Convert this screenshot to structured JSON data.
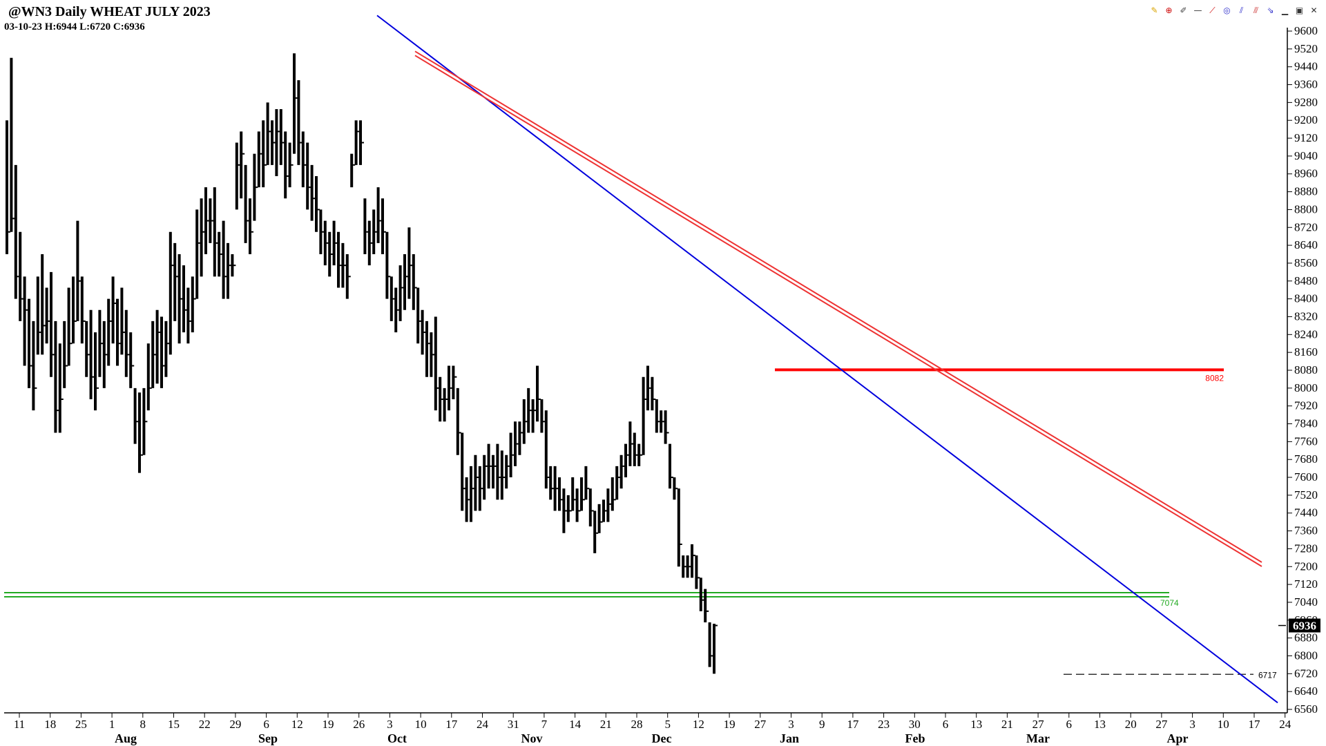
{
  "header": {
    "title": "@WN3 Daily WHEAT JULY 2023",
    "ohlc": "03-10-23  H:6944  L:6720  C:6936"
  },
  "toolbar": {
    "icons": [
      "pencil-icon",
      "crosshair-icon",
      "brush-icon",
      "line-icon",
      "trendline-icon",
      "circle-icon",
      "fan-icon",
      "channel-icon",
      "arrow-icon",
      "minimize-icon",
      "restore-icon",
      "close-icon"
    ]
  },
  "colors": {
    "bars": "#000000",
    "resistance": "#ff0000",
    "support": "#22aa22",
    "trend_blue": "#0000dd",
    "trend_red": "#ee3333"
  },
  "chart_data": {
    "type": "bar",
    "title": "@WN3 Daily WHEAT JULY 2023",
    "ylim": [
      6560,
      9600
    ],
    "y_ticks": [
      6560,
      6640,
      6720,
      6800,
      6880,
      6960,
      7040,
      7120,
      7200,
      7280,
      7360,
      7440,
      7520,
      7600,
      7680,
      7760,
      7840,
      7920,
      8000,
      8080,
      8160,
      8240,
      8320,
      8400,
      8480,
      8560,
      8640,
      8720,
      8800,
      8880,
      8960,
      9040,
      9120,
      9200,
      9280,
      9360,
      9440,
      9520,
      9600
    ],
    "x_day_labels": [
      "11",
      "18",
      "25",
      "1",
      "8",
      "15",
      "22",
      "29",
      "6",
      "12",
      "19",
      "26",
      "3",
      "10",
      "17",
      "24",
      "31",
      "7",
      "14",
      "21",
      "28",
      "5",
      "12",
      "19",
      "27",
      "3",
      "9",
      "17",
      "23",
      "30",
      "6",
      "13",
      "21",
      "27",
      "6",
      "13",
      "20",
      "27",
      "3",
      "10",
      "17",
      "24"
    ],
    "x_month_labels": [
      "Aug",
      "Sep",
      "Oct",
      "Nov",
      "Dec",
      "Jan",
      "Feb",
      "Mar",
      "Apr"
    ],
    "last_price": "6936",
    "levels": [
      {
        "value": 8082,
        "label": "8082"
      },
      {
        "value": 7074,
        "label": "7074"
      },
      {
        "value": 6717,
        "label": "6717"
      }
    ],
    "trendlines": [
      {
        "name": "",
        "from": [
          9670,
          1
        ],
        "to": [
          6590,
          241
        ]
      },
      {
        "name": "",
        "from": [
          9500,
          14
        ],
        "to": [
          7210,
          240
        ]
      }
    ],
    "bars": [
      {
        "h": 9200,
        "l": 8600,
        "c": 8700
      },
      {
        "h": 9480,
        "l": 8700,
        "c": 8760
      },
      {
        "h": 9000,
        "l": 8400,
        "c": 8500
      },
      {
        "h": 8700,
        "l": 8300,
        "c": 8400
      },
      {
        "h": 8500,
        "l": 8100,
        "c": 8350
      },
      {
        "h": 8400,
        "l": 8000,
        "c": 8100
      },
      {
        "h": 8300,
        "l": 7900,
        "c": 8000
      },
      {
        "h": 8500,
        "l": 8150,
        "c": 8250
      },
      {
        "h": 8600,
        "l": 8150,
        "c": 8280
      },
      {
        "h": 8450,
        "l": 8200,
        "c": 8300
      },
      {
        "h": 8520,
        "l": 8050,
        "c": 8150
      },
      {
        "h": 8300,
        "l": 7800,
        "c": 7900
      },
      {
        "h": 8200,
        "l": 7800,
        "c": 7950
      },
      {
        "h": 8300,
        "l": 8000,
        "c": 8100
      },
      {
        "h": 8450,
        "l": 8100,
        "c": 8200
      },
      {
        "h": 8500,
        "l": 8200,
        "c": 8300
      },
      {
        "h": 8750,
        "l": 8300,
        "c": 8480
      },
      {
        "h": 8500,
        "l": 8200,
        "c": 8300
      },
      {
        "h": 8300,
        "l": 8050,
        "c": 8150
      },
      {
        "h": 8350,
        "l": 7950,
        "c": 8050
      },
      {
        "h": 8250,
        "l": 7900,
        "c": 8000
      },
      {
        "h": 8350,
        "l": 8050,
        "c": 8200
      },
      {
        "h": 8300,
        "l": 8000,
        "c": 8150
      },
      {
        "h": 8400,
        "l": 8100,
        "c": 8300
      },
      {
        "h": 8500,
        "l": 8200,
        "c": 8380
      },
      {
        "h": 8400,
        "l": 8100,
        "c": 8200
      },
      {
        "h": 8450,
        "l": 8150,
        "c": 8250
      },
      {
        "h": 8350,
        "l": 8050,
        "c": 8150
      },
      {
        "h": 8250,
        "l": 8000,
        "c": 8100
      },
      {
        "h": 8000,
        "l": 7750,
        "c": 7850
      },
      {
        "h": 7980,
        "l": 7620,
        "c": 7700
      },
      {
        "h": 8000,
        "l": 7700,
        "c": 7850
      },
      {
        "h": 8200,
        "l": 7900,
        "c": 8000
      },
      {
        "h": 8300,
        "l": 8000,
        "c": 8150
      },
      {
        "h": 8350,
        "l": 8020,
        "c": 8250
      },
      {
        "h": 8320,
        "l": 8000,
        "c": 8100
      },
      {
        "h": 8300,
        "l": 8050,
        "c": 8200
      },
      {
        "h": 8700,
        "l": 8150,
        "c": 8550
      },
      {
        "h": 8650,
        "l": 8300,
        "c": 8500
      },
      {
        "h": 8600,
        "l": 8200,
        "c": 8400
      },
      {
        "h": 8550,
        "l": 8250,
        "c": 8350
      },
      {
        "h": 8450,
        "l": 8200,
        "c": 8300
      },
      {
        "h": 8500,
        "l": 8250,
        "c": 8400
      },
      {
        "h": 8800,
        "l": 8400,
        "c": 8650
      },
      {
        "h": 8850,
        "l": 8500,
        "c": 8700
      },
      {
        "h": 8900,
        "l": 8600,
        "c": 8750
      },
      {
        "h": 8850,
        "l": 8650,
        "c": 8750
      },
      {
        "h": 8900,
        "l": 8500,
        "c": 8650
      },
      {
        "h": 8700,
        "l": 8500,
        "c": 8600
      },
      {
        "h": 8750,
        "l": 8400,
        "c": 8500
      },
      {
        "h": 8650,
        "l": 8400,
        "c": 8550
      },
      {
        "h": 8600,
        "l": 8500,
        "c": 8550
      },
      {
        "h": 9100,
        "l": 8800,
        "c": 9000
      },
      {
        "h": 9150,
        "l": 8850,
        "c": 9050
      },
      {
        "h": 9000,
        "l": 8650,
        "c": 8750
      },
      {
        "h": 8850,
        "l": 8600,
        "c": 8700
      },
      {
        "h": 9050,
        "l": 8750,
        "c": 8900
      },
      {
        "h": 9150,
        "l": 8900,
        "c": 9050
      },
      {
        "h": 9200,
        "l": 8900,
        "c": 9000
      },
      {
        "h": 9280,
        "l": 9000,
        "c": 9150
      },
      {
        "h": 9200,
        "l": 9000,
        "c": 9100
      },
      {
        "h": 9250,
        "l": 8950,
        "c": 9150
      },
      {
        "h": 9250,
        "l": 9000,
        "c": 9100
      },
      {
        "h": 9150,
        "l": 8850,
        "c": 8950
      },
      {
        "h": 9100,
        "l": 8900,
        "c": 9000
      },
      {
        "h": 9500,
        "l": 9050,
        "c": 9300
      },
      {
        "h": 9380,
        "l": 9000,
        "c": 9100
      },
      {
        "h": 9150,
        "l": 8900,
        "c": 9000
      },
      {
        "h": 9100,
        "l": 8800,
        "c": 8900
      },
      {
        "h": 9000,
        "l": 8750,
        "c": 8850
      },
      {
        "h": 8950,
        "l": 8700,
        "c": 8800
      },
      {
        "h": 8800,
        "l": 8600,
        "c": 8700
      },
      {
        "h": 8750,
        "l": 8550,
        "c": 8650
      },
      {
        "h": 8700,
        "l": 8500,
        "c": 8600
      },
      {
        "h": 8750,
        "l": 8550,
        "c": 8650
      },
      {
        "h": 8700,
        "l": 8450,
        "c": 8550
      },
      {
        "h": 8650,
        "l": 8450,
        "c": 8550
      },
      {
        "h": 8600,
        "l": 8400,
        "c": 8500
      },
      {
        "h": 9050,
        "l": 8900,
        "c": 9000
      },
      {
        "h": 9200,
        "l": 9000,
        "c": 9150
      },
      {
        "h": 9200,
        "l": 9000,
        "c": 9100
      },
      {
        "h": 8850,
        "l": 8600,
        "c": 8700
      },
      {
        "h": 8750,
        "l": 8550,
        "c": 8650
      },
      {
        "h": 8800,
        "l": 8600,
        "c": 8700
      },
      {
        "h": 8900,
        "l": 8650,
        "c": 8750
      },
      {
        "h": 8850,
        "l": 8600,
        "c": 8700
      },
      {
        "h": 8700,
        "l": 8400,
        "c": 8500
      },
      {
        "h": 8500,
        "l": 8300,
        "c": 8400
      },
      {
        "h": 8450,
        "l": 8250,
        "c": 8350
      },
      {
        "h": 8550,
        "l": 8300,
        "c": 8450
      },
      {
        "h": 8600,
        "l": 8350,
        "c": 8500
      },
      {
        "h": 8720,
        "l": 8400,
        "c": 8550
      },
      {
        "h": 8600,
        "l": 8350,
        "c": 8450
      },
      {
        "h": 8450,
        "l": 8200,
        "c": 8300
      },
      {
        "h": 8350,
        "l": 8150,
        "c": 8250
      },
      {
        "h": 8300,
        "l": 8050,
        "c": 8200
      },
      {
        "h": 8250,
        "l": 8050,
        "c": 8150
      },
      {
        "h": 8320,
        "l": 7900,
        "c": 8000
      },
      {
        "h": 8050,
        "l": 7850,
        "c": 7950
      },
      {
        "h": 8000,
        "l": 7850,
        "c": 7950
      },
      {
        "h": 8100,
        "l": 7900,
        "c": 8000
      },
      {
        "h": 8100,
        "l": 7950,
        "c": 8050
      },
      {
        "h": 8000,
        "l": 7700,
        "c": 7800
      },
      {
        "h": 7800,
        "l": 7450,
        "c": 7550
      },
      {
        "h": 7600,
        "l": 7400,
        "c": 7500
      },
      {
        "h": 7650,
        "l": 7400,
        "c": 7550
      },
      {
        "h": 7700,
        "l": 7450,
        "c": 7600
      },
      {
        "h": 7650,
        "l": 7450,
        "c": 7550
      },
      {
        "h": 7700,
        "l": 7500,
        "c": 7650
      },
      {
        "h": 7750,
        "l": 7550,
        "c": 7650
      },
      {
        "h": 7700,
        "l": 7550,
        "c": 7650
      },
      {
        "h": 7750,
        "l": 7500,
        "c": 7600
      },
      {
        "h": 7720,
        "l": 7500,
        "c": 7600
      },
      {
        "h": 7700,
        "l": 7550,
        "c": 7650
      },
      {
        "h": 7800,
        "l": 7600,
        "c": 7700
      },
      {
        "h": 7850,
        "l": 7650,
        "c": 7750
      },
      {
        "h": 7850,
        "l": 7700,
        "c": 7800
      },
      {
        "h": 7950,
        "l": 7750,
        "c": 7850
      },
      {
        "h": 8000,
        "l": 7800,
        "c": 7900
      },
      {
        "h": 7950,
        "l": 7800,
        "c": 7900
      },
      {
        "h": 8100,
        "l": 7850,
        "c": 7950
      },
      {
        "h": 7950,
        "l": 7800,
        "c": 7850
      },
      {
        "h": 7900,
        "l": 7550,
        "c": 7600
      },
      {
        "h": 7650,
        "l": 7500,
        "c": 7550
      },
      {
        "h": 7650,
        "l": 7450,
        "c": 7550
      },
      {
        "h": 7600,
        "l": 7450,
        "c": 7500
      },
      {
        "h": 7550,
        "l": 7350,
        "c": 7450
      },
      {
        "h": 7520,
        "l": 7400,
        "c": 7450
      },
      {
        "h": 7600,
        "l": 7450,
        "c": 7500
      },
      {
        "h": 7550,
        "l": 7400,
        "c": 7450
      },
      {
        "h": 7600,
        "l": 7450,
        "c": 7500
      },
      {
        "h": 7650,
        "l": 7500,
        "c": 7550
      },
      {
        "h": 7550,
        "l": 7380,
        "c": 7450
      },
      {
        "h": 7450,
        "l": 7260,
        "c": 7350
      },
      {
        "h": 7480,
        "l": 7350,
        "c": 7400
      },
      {
        "h": 7500,
        "l": 7400,
        "c": 7450
      },
      {
        "h": 7550,
        "l": 7400,
        "c": 7480
      },
      {
        "h": 7600,
        "l": 7450,
        "c": 7500
      },
      {
        "h": 7650,
        "l": 7500,
        "c": 7600
      },
      {
        "h": 7700,
        "l": 7550,
        "c": 7650
      },
      {
        "h": 7750,
        "l": 7600,
        "c": 7700
      },
      {
        "h": 7850,
        "l": 7650,
        "c": 7750
      },
      {
        "h": 7800,
        "l": 7650,
        "c": 7700
      },
      {
        "h": 7750,
        "l": 7650,
        "c": 7700
      },
      {
        "h": 8050,
        "l": 7700,
        "c": 7950
      },
      {
        "h": 8100,
        "l": 7900,
        "c": 8000
      },
      {
        "h": 8050,
        "l": 7900,
        "c": 7950
      },
      {
        "h": 7950,
        "l": 7800,
        "c": 7850
      },
      {
        "h": 7900,
        "l": 7800,
        "c": 7850
      },
      {
        "h": 7900,
        "l": 7750,
        "c": 7800
      },
      {
        "h": 7750,
        "l": 7550,
        "c": 7600
      },
      {
        "h": 7600,
        "l": 7500,
        "c": 7550
      },
      {
        "h": 7550,
        "l": 7200,
        "c": 7300
      },
      {
        "h": 7250,
        "l": 7150,
        "c": 7200
      },
      {
        "h": 7250,
        "l": 7150,
        "c": 7200
      },
      {
        "h": 7300,
        "l": 7150,
        "c": 7250
      },
      {
        "h": 7250,
        "l": 7100,
        "c": 7150
      },
      {
        "h": 7150,
        "l": 7000,
        "c": 7050
      },
      {
        "h": 7100,
        "l": 6950,
        "c": 7000
      },
      {
        "h": 6950,
        "l": 6750,
        "c": 6800
      },
      {
        "h": 6944,
        "l": 6720,
        "c": 6936
      }
    ]
  }
}
